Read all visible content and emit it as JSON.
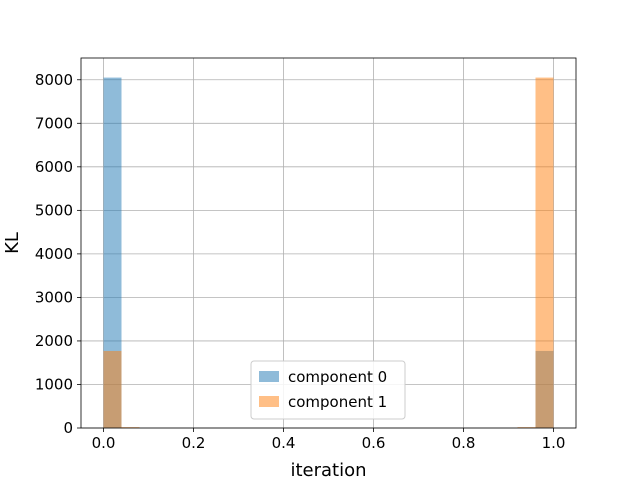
{
  "chart_data": {
    "type": "bar",
    "title": "",
    "xlabel": "iteration",
    "ylabel": "KL",
    "xlim": [
      -0.05,
      1.05
    ],
    "ylim": [
      0,
      8500
    ],
    "xticks": [
      0.0,
      0.2,
      0.4,
      0.6,
      0.8,
      1.0
    ],
    "xtick_labels": [
      "0.0",
      "0.2",
      "0.4",
      "0.6",
      "0.8",
      "1.0"
    ],
    "yticks": [
      0,
      1000,
      2000,
      3000,
      4000,
      5000,
      6000,
      7000,
      8000
    ],
    "ytick_labels": [
      "0",
      "1000",
      "2000",
      "3000",
      "4000",
      "5000",
      "6000",
      "7000",
      "8000"
    ],
    "grid": true,
    "legend_position": "lower-center",
    "bin_width": 0.04,
    "series": [
      {
        "name": "component 0",
        "color": "#1f77b4",
        "opacity": 0.5,
        "bins": [
          {
            "x": 0.0,
            "value": 8050
          },
          {
            "x": 0.96,
            "value": 1770
          }
        ]
      },
      {
        "name": "component 1",
        "color": "#ff7f0e",
        "opacity": 0.5,
        "bins": [
          {
            "x": 0.0,
            "value": 1770
          },
          {
            "x": 0.04,
            "value": 20
          },
          {
            "x": 0.92,
            "value": 20
          },
          {
            "x": 0.96,
            "value": 8050
          }
        ]
      }
    ]
  }
}
